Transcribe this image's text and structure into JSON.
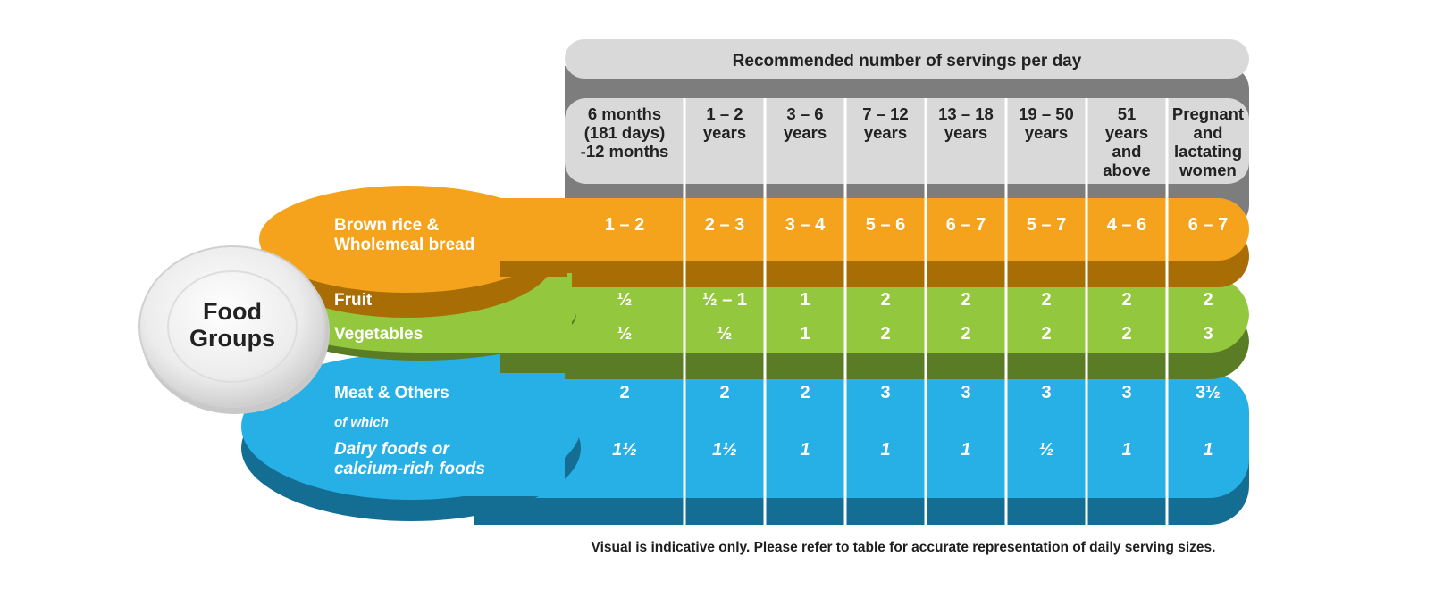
{
  "chart_data": {
    "type": "table",
    "title": "Recommended number of servings per day",
    "corner_label": "Food Groups",
    "columns": [
      "6 months (181 days) -12 months",
      "1 – 2 years",
      "3 – 6 years",
      "7 – 12 years",
      "13 – 18 years",
      "19 – 50 years",
      "51 years and above",
      "Pregnant and lactating women"
    ],
    "column_lines": [
      [
        "6 months",
        "(181 days)",
        "-12 months"
      ],
      [
        "1 – 2",
        "years"
      ],
      [
        "3 – 6",
        "years"
      ],
      [
        "7 – 12",
        "years"
      ],
      [
        "13 – 18",
        "years"
      ],
      [
        "19 – 50",
        "years"
      ],
      [
        "51",
        "years",
        "and",
        "above"
      ],
      [
        "Pregnant",
        "and",
        "lactating",
        "women"
      ]
    ],
    "rows": [
      {
        "group": "grains",
        "label_lines": [
          "Brown rice &",
          "Wholemeal bread"
        ],
        "italic": false,
        "values": [
          "1 – 2",
          "2 – 3",
          "3 – 4",
          "5 – 6",
          "6 – 7",
          "5 – 7",
          "4 – 6",
          "6 – 7"
        ]
      },
      {
        "group": "fruit-veg",
        "label_lines": [
          "Fruit"
        ],
        "italic": false,
        "values": [
          "½",
          "½ – 1",
          "1",
          "2",
          "2",
          "2",
          "2",
          "2"
        ]
      },
      {
        "group": "fruit-veg",
        "label_lines": [
          "Vegetables"
        ],
        "italic": false,
        "values": [
          "½",
          "½",
          "1",
          "2",
          "2",
          "2",
          "2",
          "3"
        ]
      },
      {
        "group": "meat",
        "label_lines": [
          "Meat & Others"
        ],
        "italic": false,
        "values": [
          "2",
          "2",
          "2",
          "3",
          "3",
          "3",
          "3",
          "3½"
        ]
      },
      {
        "group": "meat",
        "label_lines": [
          "of which"
        ],
        "italic": true,
        "values": []
      },
      {
        "group": "meat",
        "label_lines": [
          "Dairy foods or",
          "calcium-rich foods"
        ],
        "italic": true,
        "values": [
          "1½",
          "1½",
          "1",
          "1",
          "1",
          "½",
          "1",
          "1"
        ]
      }
    ],
    "footnote": "Visual is indicative only. Please refer to table for accurate representation of daily serving sizes."
  },
  "colors": {
    "header_light": "#d9d9d9",
    "header_dark": "#7d7d7d",
    "grains": "#f5a31c",
    "grains_dark": "#a86e05",
    "fruit_veg": "#93c83e",
    "fruit_veg_dark": "#5a7c24",
    "meat": "#27b0e5",
    "meat_dark": "#146e94",
    "plate": "#e6e6e6"
  }
}
